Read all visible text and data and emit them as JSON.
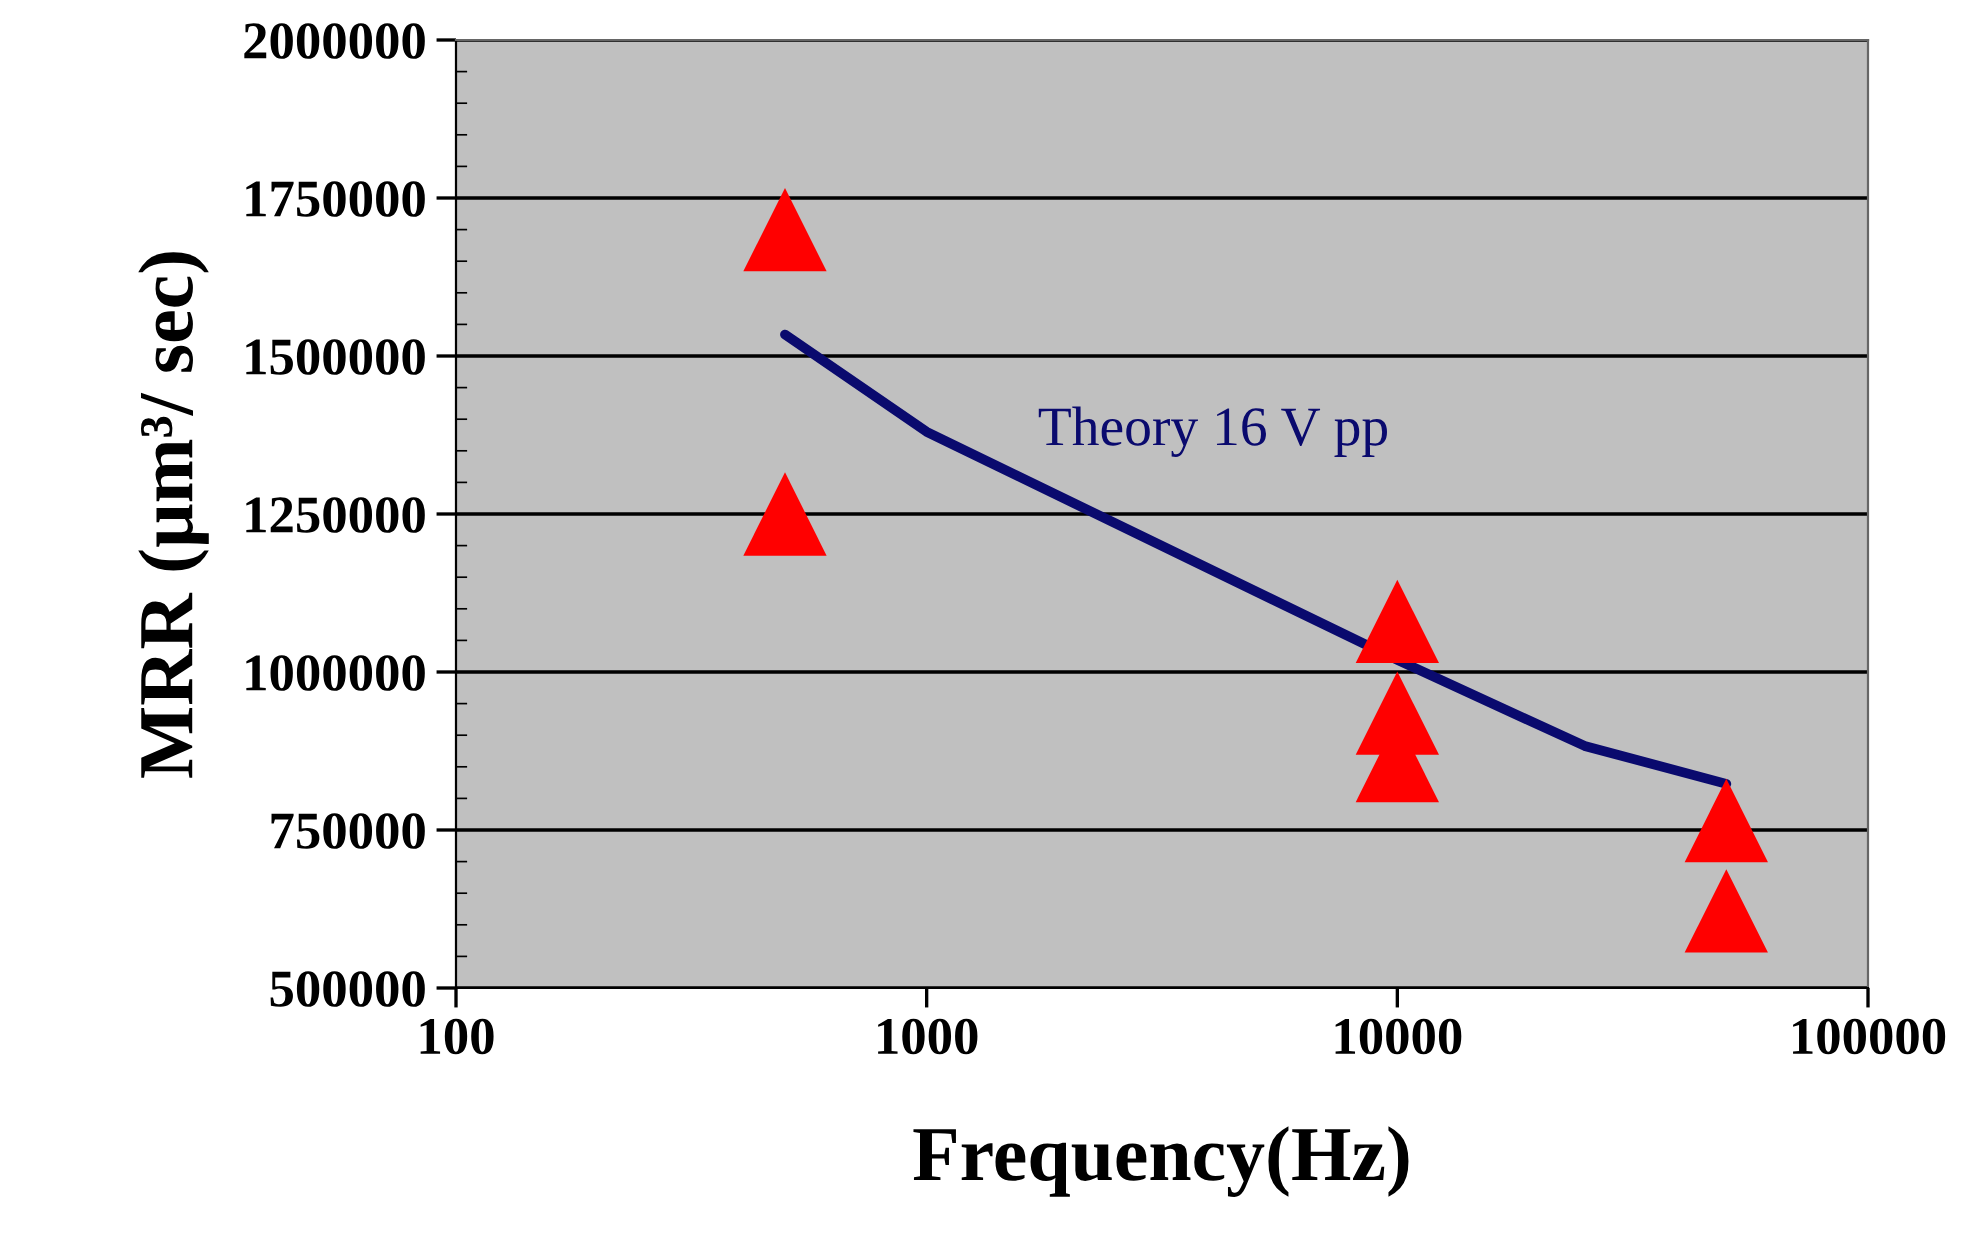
{
  "chart_data": {
    "type": "scatter",
    "xlabel": "Frequency(Hz)",
    "ylabel": "MRR (µm³/ sec)",
    "log": "x",
    "xlim": [
      100,
      100000
    ],
    "xticks": [
      100,
      1000,
      10000,
      100000
    ],
    "ylim": [
      500000,
      2000000
    ],
    "yticks": [
      500000,
      750000,
      1000000,
      1250000,
      1500000,
      1750000,
      2000000
    ],
    "grid": "y",
    "legend": false,
    "series": [
      {
        "name": "Theory 16 V pp",
        "type": "line",
        "color": "#0a0a6e",
        "x": [
          500,
          1000,
          10000,
          25000,
          50000
        ],
        "values": [
          1534000,
          1380000,
          1019000,
          883000,
          823000
        ],
        "marker": "none",
        "line_style": "solid"
      },
      {
        "color": "#ff0000",
        "x": [
          500,
          500,
          10000,
          10000,
          10000,
          50000,
          50000
        ],
        "values": [
          1700000,
          1250000,
          1080000,
          935000,
          860000,
          765000,
          622000
        ],
        "marker": "triangle"
      }
    ]
  }
}
